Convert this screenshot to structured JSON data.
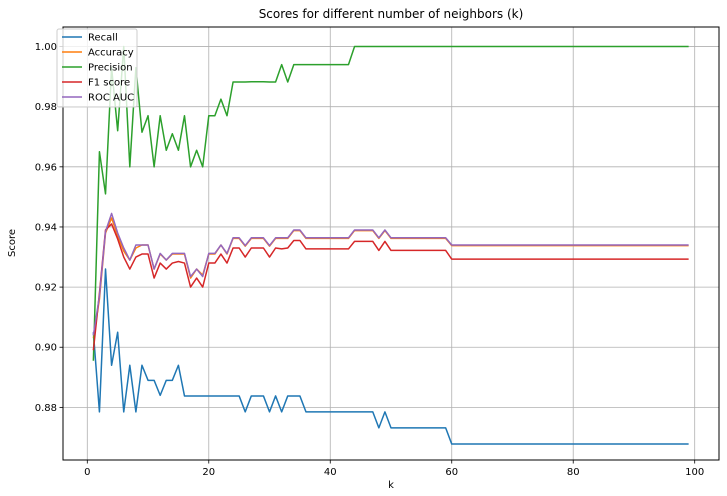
{
  "chart_data": {
    "type": "line",
    "title": "Scores for different number of neighbors (k)",
    "xlabel": "k",
    "ylabel": "Score",
    "xlim": [
      -4,
      104
    ],
    "ylim": [
      0.8625,
      1.0065
    ],
    "xticks": [
      0,
      20,
      40,
      60,
      80,
      100
    ],
    "yticks": [
      0.88,
      0.9,
      0.92,
      0.94,
      0.96,
      0.98,
      1.0
    ],
    "xtick_labels": [
      "0",
      "20",
      "40",
      "60",
      "80",
      "100"
    ],
    "ytick_labels": [
      "0.88",
      "0.90",
      "0.92",
      "0.94",
      "0.96",
      "0.98",
      "1.00"
    ],
    "grid": true,
    "legend_position": "top-left",
    "x": [
      1,
      2,
      3,
      4,
      5,
      6,
      7,
      8,
      9,
      10,
      11,
      12,
      13,
      14,
      15,
      16,
      17,
      18,
      19,
      20,
      21,
      22,
      23,
      24,
      25,
      26,
      27,
      28,
      29,
      30,
      31,
      32,
      33,
      34,
      35,
      36,
      37,
      38,
      39,
      40,
      41,
      42,
      43,
      44,
      45,
      46,
      47,
      48,
      49,
      50,
      51,
      52,
      53,
      54,
      55,
      56,
      57,
      58,
      59,
      60,
      61,
      62,
      63,
      64,
      65,
      66,
      67,
      68,
      69,
      70,
      71,
      72,
      73,
      74,
      75,
      76,
      77,
      78,
      79,
      80,
      81,
      82,
      83,
      84,
      85,
      86,
      87,
      88,
      89,
      90,
      91,
      92,
      93,
      94,
      95,
      96,
      97,
      98,
      99
    ],
    "series": [
      {
        "name": "Recall",
        "color": "#1f77b4",
        "values": [
          0.905,
          0.8785,
          0.926,
          0.894,
          0.905,
          0.8785,
          0.894,
          0.8785,
          0.894,
          0.889,
          0.889,
          0.884,
          0.889,
          0.889,
          0.894,
          0.8838,
          0.8838,
          0.8838,
          0.8838,
          0.8838,
          0.8838,
          0.8838,
          0.8838,
          0.8838,
          0.8838,
          0.8785,
          0.8838,
          0.8838,
          0.8838,
          0.8785,
          0.8838,
          0.8785,
          0.8838,
          0.8838,
          0.8838,
          0.8785,
          0.8785,
          0.8785,
          0.8785,
          0.8785,
          0.8785,
          0.8785,
          0.8785,
          0.8785,
          0.8785,
          0.8785,
          0.8785,
          0.8732,
          0.8785,
          0.8732,
          0.8732,
          0.8732,
          0.8732,
          0.8732,
          0.8732,
          0.8732,
          0.8732,
          0.8732,
          0.8732,
          0.8678,
          0.8678,
          0.8678,
          0.8678,
          0.8678,
          0.8678,
          0.8678,
          0.8678,
          0.8678,
          0.8678,
          0.8678,
          0.8678,
          0.8678,
          0.8678,
          0.8678,
          0.8678,
          0.8678,
          0.8678,
          0.8678,
          0.8678,
          0.8678,
          0.8678,
          0.8678,
          0.8678,
          0.8678,
          0.8678,
          0.8678,
          0.8678,
          0.8678,
          0.8678,
          0.8678,
          0.8678,
          0.8678,
          0.8678,
          0.8678,
          0.8678,
          0.8678,
          0.8678,
          0.8678,
          0.8678
        ]
      },
      {
        "name": "Accuracy",
        "color": "#ff7f0e",
        "values": [
          0.903,
          0.916,
          0.938,
          0.943,
          0.937,
          0.932,
          0.929,
          0.933,
          0.934,
          0.934,
          0.926,
          0.931,
          0.929,
          0.931,
          0.931,
          0.931,
          0.923,
          0.926,
          0.924,
          0.931,
          0.931,
          0.934,
          0.931,
          0.9362,
          0.9362,
          0.9336,
          0.9362,
          0.9362,
          0.9362,
          0.9336,
          0.9362,
          0.9362,
          0.9362,
          0.9388,
          0.9388,
          0.9362,
          0.9362,
          0.9362,
          0.9362,
          0.9362,
          0.9362,
          0.9362,
          0.9362,
          0.9388,
          0.9388,
          0.9388,
          0.9388,
          0.9362,
          0.9388,
          0.9362,
          0.9362,
          0.9362,
          0.9362,
          0.9362,
          0.9362,
          0.9362,
          0.9362,
          0.9362,
          0.9362,
          0.9338,
          0.9338,
          0.9338,
          0.9338,
          0.9338,
          0.9338,
          0.9338,
          0.9338,
          0.9338,
          0.9338,
          0.9338,
          0.9338,
          0.9338,
          0.9338,
          0.9338,
          0.9338,
          0.9338,
          0.9338,
          0.9338,
          0.9338,
          0.9338,
          0.9338,
          0.9338,
          0.9338,
          0.9338,
          0.9338,
          0.9338,
          0.9338,
          0.9338,
          0.9338,
          0.9338,
          0.9338,
          0.9338,
          0.9338,
          0.9338,
          0.9338,
          0.9338,
          0.9338,
          0.9338,
          0.9338
        ]
      },
      {
        "name": "Precision",
        "color": "#2ca02c",
        "values": [
          0.8955,
          0.965,
          0.951,
          0.993,
          0.972,
          1.0,
          0.96,
          0.993,
          0.9715,
          0.977,
          0.96,
          0.977,
          0.9655,
          0.971,
          0.9655,
          0.977,
          0.96,
          0.9655,
          0.96,
          0.977,
          0.977,
          0.9825,
          0.977,
          0.9882,
          0.9882,
          0.9882,
          0.9883,
          0.9883,
          0.9883,
          0.9882,
          0.9882,
          0.994,
          0.9882,
          0.994,
          0.994,
          0.994,
          0.994,
          0.994,
          0.994,
          0.994,
          0.994,
          0.994,
          0.994,
          1.0,
          1.0,
          1.0,
          1.0,
          1.0,
          1.0,
          1.0,
          1.0,
          1.0,
          1.0,
          1.0,
          1.0,
          1.0,
          1.0,
          1.0,
          1.0,
          1.0,
          1.0,
          1.0,
          1.0,
          1.0,
          1.0,
          1.0,
          1.0,
          1.0,
          1.0,
          1.0,
          1.0,
          1.0,
          1.0,
          1.0,
          1.0,
          1.0,
          1.0,
          1.0,
          1.0,
          1.0,
          1.0,
          1.0,
          1.0,
          1.0,
          1.0,
          1.0,
          1.0,
          1.0,
          1.0,
          1.0,
          1.0,
          1.0,
          1.0,
          1.0,
          1.0,
          1.0,
          1.0,
          1.0,
          1.0
        ]
      },
      {
        "name": "F1 score",
        "color": "#d62728",
        "values": [
          0.899,
          0.918,
          0.939,
          0.941,
          0.936,
          0.93,
          0.926,
          0.93,
          0.931,
          0.931,
          0.923,
          0.928,
          0.926,
          0.928,
          0.9285,
          0.928,
          0.92,
          0.923,
          0.92,
          0.928,
          0.928,
          0.931,
          0.928,
          0.933,
          0.933,
          0.93,
          0.933,
          0.933,
          0.933,
          0.93,
          0.933,
          0.9327,
          0.933,
          0.9355,
          0.9355,
          0.9327,
          0.9327,
          0.9327,
          0.9327,
          0.9327,
          0.9327,
          0.9327,
          0.9327,
          0.9352,
          0.9352,
          0.9352,
          0.9352,
          0.9322,
          0.9352,
          0.9322,
          0.9322,
          0.9322,
          0.9322,
          0.9322,
          0.9322,
          0.9322,
          0.9322,
          0.9322,
          0.9322,
          0.9293,
          0.9293,
          0.9293,
          0.9293,
          0.9293,
          0.9293,
          0.9293,
          0.9293,
          0.9293,
          0.9293,
          0.9293,
          0.9293,
          0.9293,
          0.9293,
          0.9293,
          0.9293,
          0.9293,
          0.9293,
          0.9293,
          0.9293,
          0.9293,
          0.9293,
          0.9293,
          0.9293,
          0.9293,
          0.9293,
          0.9293,
          0.9293,
          0.9293,
          0.9293,
          0.9293,
          0.9293,
          0.9293,
          0.9293,
          0.9293,
          0.9293,
          0.9293,
          0.9293,
          0.9293,
          0.9293
        ]
      },
      {
        "name": "ROC AUC",
        "color": "#9467bd",
        "values": [
          0.904,
          0.917,
          0.9385,
          0.9445,
          0.938,
          0.933,
          0.929,
          0.934,
          0.934,
          0.934,
          0.926,
          0.9312,
          0.929,
          0.9312,
          0.9312,
          0.9312,
          0.9235,
          0.926,
          0.9235,
          0.9312,
          0.9312,
          0.934,
          0.9312,
          0.9364,
          0.9364,
          0.9338,
          0.9364,
          0.9364,
          0.9364,
          0.9338,
          0.9364,
          0.9364,
          0.9364,
          0.939,
          0.939,
          0.9364,
          0.9364,
          0.9364,
          0.9364,
          0.9364,
          0.9364,
          0.9364,
          0.9364,
          0.939,
          0.939,
          0.939,
          0.939,
          0.9364,
          0.939,
          0.9364,
          0.9364,
          0.9364,
          0.9364,
          0.9364,
          0.9364,
          0.9364,
          0.9364,
          0.9364,
          0.9364,
          0.934,
          0.934,
          0.934,
          0.934,
          0.934,
          0.934,
          0.934,
          0.934,
          0.934,
          0.934,
          0.934,
          0.934,
          0.934,
          0.934,
          0.934,
          0.934,
          0.934,
          0.934,
          0.934,
          0.934,
          0.934,
          0.934,
          0.934,
          0.934,
          0.934,
          0.934,
          0.934,
          0.934,
          0.934,
          0.934,
          0.934,
          0.934,
          0.934,
          0.934,
          0.934,
          0.934,
          0.934,
          0.934,
          0.934,
          0.934
        ]
      }
    ]
  }
}
